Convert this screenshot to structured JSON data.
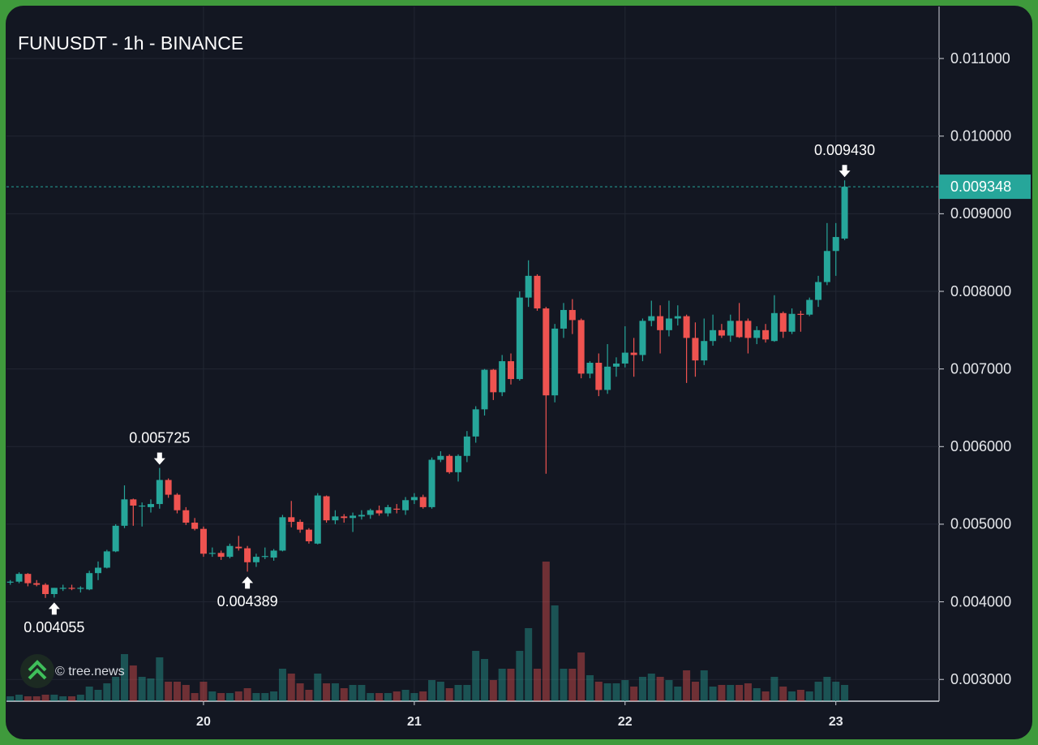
{
  "chart_data": {
    "type": "candlestick",
    "title": "FUNUSDT - 1h - BINANCE",
    "watermark": "© tree.news",
    "categories": [
      null,
      null,
      null,
      null,
      null,
      null,
      null,
      null,
      null,
      null,
      null,
      null,
      null,
      null,
      null,
      null,
      null,
      null,
      null,
      null,
      null,
      null,
      "20",
      null,
      null,
      null,
      null,
      null,
      null,
      null,
      null,
      null,
      null,
      null,
      null,
      null,
      null,
      null,
      null,
      null,
      null,
      null,
      null,
      null,
      null,
      null,
      "21",
      null,
      null,
      null,
      null,
      null,
      null,
      null,
      null,
      null,
      null,
      null,
      null,
      null,
      null,
      null,
      null,
      null,
      null,
      null,
      null,
      null,
      null,
      null,
      "22",
      null,
      null,
      null,
      null,
      null,
      null,
      null,
      null,
      null,
      null,
      null,
      null,
      null,
      null,
      null,
      null,
      null,
      null,
      null,
      null,
      null,
      null,
      null,
      "23",
      null
    ],
    "open": [
      0.00425,
      0.00426,
      0.00436,
      0.00424,
      0.00422,
      0.0041,
      0.00417,
      0.00418,
      0.00417,
      0.00416,
      0.00437,
      0.00444,
      0.00465,
      0.00498,
      0.00532,
      0.00524,
      0.00522,
      0.00526,
      0.00557,
      0.00538,
      0.00518,
      0.00502,
      0.00494,
      0.00462,
      0.00463,
      0.00458,
      0.00471,
      0.00469,
      0.00451,
      0.00458,
      0.00457,
      0.00466,
      0.00509,
      0.00503,
      0.00493,
      0.00475,
      0.00536,
      0.00505,
      0.0051,
      0.00508,
      0.0051,
      0.00512,
      0.00518,
      0.00514,
      0.0052,
      0.00518,
      0.00531,
      0.00535,
      0.00522,
      0.00583,
      0.00588,
      0.00567,
      0.00588,
      0.00613,
      0.00648,
      0.00699,
      0.0067,
      0.0071,
      0.00687,
      0.00792,
      0.0082,
      0.00778,
      0.00666,
      0.00752,
      0.00776,
      0.00763,
      0.00694,
      0.00708,
      0.00673,
      0.00703,
      0.00707,
      0.00721,
      0.00718,
      0.00762,
      0.00768,
      0.0075,
      0.00765,
      0.00768,
      0.0074,
      0.00711,
      0.00736,
      0.0075,
      0.00743,
      0.00762,
      0.00762,
      0.0074,
      0.0075,
      0.00736,
      0.00772,
      0.00748,
      0.00771,
      0.0077,
      0.00789,
      0.00812,
      0.00852,
      0.00868
    ],
    "high": [
      0.00428,
      0.00438,
      0.00437,
      0.00428,
      0.00424,
      0.00418,
      0.00422,
      0.00422,
      0.0042,
      0.0044,
      0.00452,
      0.00467,
      0.005,
      0.0055,
      0.00533,
      0.00528,
      0.00532,
      0.005725,
      0.00559,
      0.0054,
      0.00522,
      0.00508,
      0.00497,
      0.0047,
      0.00466,
      0.00475,
      0.00485,
      0.00472,
      0.00462,
      0.0047,
      0.00468,
      0.00512,
      0.0053,
      0.00506,
      0.00495,
      0.0054,
      0.00537,
      0.00518,
      0.00513,
      0.00515,
      0.00518,
      0.0052,
      0.00524,
      0.00525,
      0.00526,
      0.00535,
      0.0054,
      0.00538,
      0.00586,
      0.00594,
      0.0059,
      0.0059,
      0.0062,
      0.00652,
      0.007,
      0.007,
      0.00718,
      0.0072,
      0.008,
      0.0084,
      0.00822,
      0.0078,
      0.00758,
      0.00785,
      0.0079,
      0.00765,
      0.0071,
      0.0072,
      0.00732,
      0.00715,
      0.00755,
      0.0074,
      0.00765,
      0.00788,
      0.00782,
      0.00788,
      0.00782,
      0.0077,
      0.0076,
      0.00765,
      0.0077,
      0.00758,
      0.0077,
      0.00785,
      0.00765,
      0.00755,
      0.00758,
      0.00795,
      0.00774,
      0.00778,
      0.00775,
      0.00792,
      0.0082,
      0.00888,
      0.00888,
      0.00943
    ],
    "low": [
      0.00422,
      0.00424,
      0.0042,
      0.0042,
      0.00405,
      0.004055,
      0.00414,
      0.00415,
      0.00412,
      0.00415,
      0.00428,
      0.00443,
      0.00464,
      0.00495,
      0.00498,
      0.00497,
      0.00515,
      0.0052,
      0.00534,
      0.00514,
      0.00499,
      0.00492,
      0.00458,
      0.00458,
      0.00454,
      0.00456,
      0.00466,
      0.004389,
      0.00445,
      0.00455,
      0.00453,
      0.00465,
      0.00496,
      0.00489,
      0.00475,
      0.00474,
      0.00502,
      0.005,
      0.00502,
      0.0049,
      0.00506,
      0.00507,
      0.00511,
      0.0051,
      0.00514,
      0.00512,
      0.00526,
      0.0052,
      0.0052,
      0.0058,
      0.00565,
      0.00555,
      0.0058,
      0.00605,
      0.0064,
      0.0066,
      0.00665,
      0.0068,
      0.00685,
      0.0078,
      0.00775,
      0.00565,
      0.00657,
      0.0074,
      0.00745,
      0.00688,
      0.00688,
      0.00665,
      0.00668,
      0.0069,
      0.00702,
      0.0069,
      0.0071,
      0.00755,
      0.0072,
      0.00742,
      0.00756,
      0.00682,
      0.0069,
      0.00705,
      0.0073,
      0.0074,
      0.00735,
      0.0074,
      0.0072,
      0.00732,
      0.00734,
      0.00735,
      0.0074,
      0.00745,
      0.00748,
      0.00768,
      0.0078,
      0.00808,
      0.0082,
      0.00866
    ],
    "close": [
      0.00426,
      0.00436,
      0.00424,
      0.00422,
      0.0041,
      0.00418,
      0.00418,
      0.00417,
      0.00418,
      0.00437,
      0.00444,
      0.00465,
      0.00498,
      0.00532,
      0.00524,
      0.00524,
      0.00526,
      0.00557,
      0.00538,
      0.00518,
      0.00502,
      0.00494,
      0.00462,
      0.00463,
      0.00458,
      0.00472,
      0.00469,
      0.00451,
      0.00458,
      0.00459,
      0.00466,
      0.00509,
      0.00503,
      0.00493,
      0.00478,
      0.00537,
      0.00505,
      0.0051,
      0.00508,
      0.00511,
      0.00512,
      0.00518,
      0.00514,
      0.00522,
      0.00519,
      0.00531,
      0.00535,
      0.00522,
      0.00583,
      0.00588,
      0.00567,
      0.00588,
      0.00613,
      0.00648,
      0.00699,
      0.0067,
      0.0071,
      0.00687,
      0.00792,
      0.0082,
      0.00778,
      0.00666,
      0.00752,
      0.00776,
      0.00763,
      0.00694,
      0.00708,
      0.00673,
      0.00703,
      0.00707,
      0.00721,
      0.00718,
      0.00762,
      0.00768,
      0.0075,
      0.00765,
      0.00768,
      0.0074,
      0.00711,
      0.00736,
      0.0075,
      0.00743,
      0.00762,
      0.00741,
      0.0074,
      0.0075,
      0.00738,
      0.00772,
      0.00748,
      0.00771,
      0.0077,
      0.00789,
      0.00812,
      0.00852,
      0.0087,
      0.009348
    ],
    "volume": [
      6,
      8,
      6,
      6,
      8,
      8,
      6,
      6,
      8,
      18,
      14,
      22,
      30,
      58,
      44,
      30,
      28,
      54,
      24,
      24,
      20,
      10,
      24,
      12,
      10,
      10,
      12,
      16,
      10,
      10,
      12,
      40,
      34,
      22,
      14,
      34,
      22,
      22,
      16,
      20,
      20,
      10,
      10,
      10,
      12,
      14,
      10,
      12,
      26,
      24,
      16,
      20,
      20,
      62,
      52,
      26,
      40,
      40,
      62,
      90,
      40,
      172,
      118,
      40,
      40,
      60,
      32,
      24,
      22,
      22,
      26,
      18,
      30,
      34,
      30,
      26,
      18,
      38,
      24,
      38,
      18,
      20,
      20,
      20,
      22,
      16,
      12,
      30,
      18,
      12,
      14,
      12,
      24,
      30,
      24,
      20
    ],
    "up_color": "#26a69a",
    "down_color": "#ef5350",
    "ylim": [
      0.00272,
      0.01167
    ],
    "yticks": [
      {
        "value": 0.003,
        "label": "0.003000"
      },
      {
        "value": 0.004,
        "label": "0.004000"
      },
      {
        "value": 0.005,
        "label": "0.005000"
      },
      {
        "value": 0.006,
        "label": "0.006000"
      },
      {
        "value": 0.007,
        "label": "0.007000"
      },
      {
        "value": 0.008,
        "label": "0.008000"
      },
      {
        "value": 0.009,
        "label": "0.009000"
      },
      {
        "value": 0.01,
        "label": "0.010000"
      },
      {
        "value": 0.011,
        "label": "0.011000"
      }
    ],
    "annotations": [
      {
        "label": "0.004055",
        "value": 0.004055
      },
      {
        "label": "0.005725",
        "value": 0.005725
      },
      {
        "label": "0.004389",
        "value": 0.004389
      },
      {
        "label": "0.009430",
        "value": 0.00943
      }
    ],
    "last_price": {
      "label": "0.009348",
      "value": 0.009348
    },
    "grid": true
  }
}
